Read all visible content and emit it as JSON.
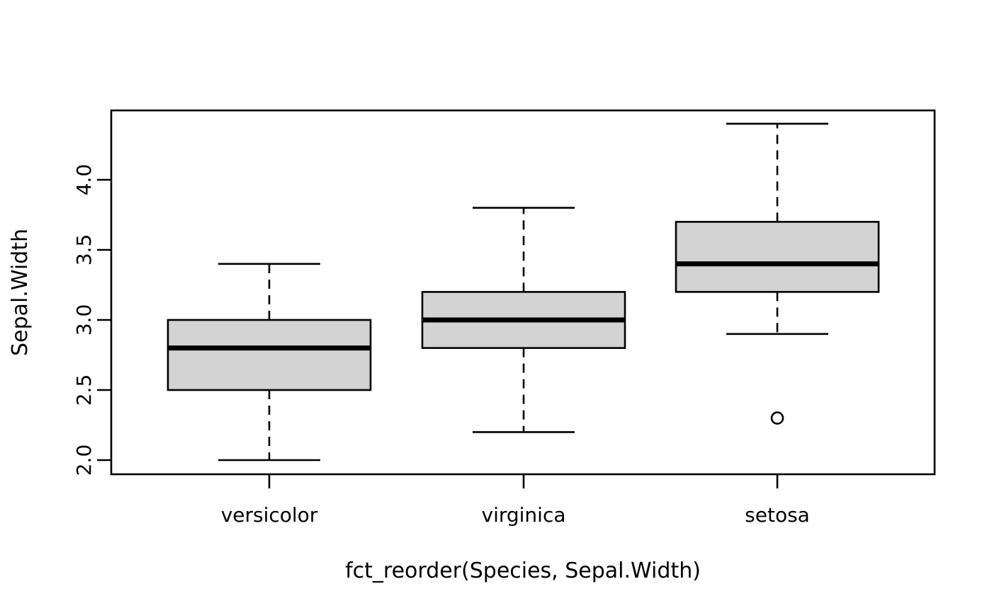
{
  "chart_data": {
    "type": "boxplot",
    "title": "",
    "xlabel": "fct_reorder(Species, Sepal.Width)",
    "ylabel": "Sepal.Width",
    "categories": [
      "versicolor",
      "virginica",
      "setosa"
    ],
    "y_ticks": [
      2.0,
      2.5,
      3.0,
      3.5,
      4.0
    ],
    "y_tick_labels": [
      "2.0",
      "2.5",
      "3.0",
      "3.5",
      "4.0"
    ],
    "ylim": [
      1.9,
      4.45
    ],
    "grid": false,
    "legend": "none",
    "series": [
      {
        "name": "versicolor",
        "whisker_low": 2.0,
        "q1": 2.5,
        "median": 2.8,
        "q3": 3.0,
        "whisker_high": 3.4,
        "outliers": []
      },
      {
        "name": "virginica",
        "whisker_low": 2.2,
        "q1": 2.8,
        "median": 3.0,
        "q3": 3.2,
        "whisker_high": 3.8,
        "outliers": []
      },
      {
        "name": "setosa",
        "whisker_low": 2.9,
        "q1": 3.2,
        "median": 3.4,
        "q3": 3.7,
        "whisker_high": 4.4,
        "outliers": [
          2.3
        ]
      }
    ],
    "style": {
      "box_fill": "#d3d3d3",
      "line_color": "#000000",
      "background": "#ffffff"
    }
  }
}
